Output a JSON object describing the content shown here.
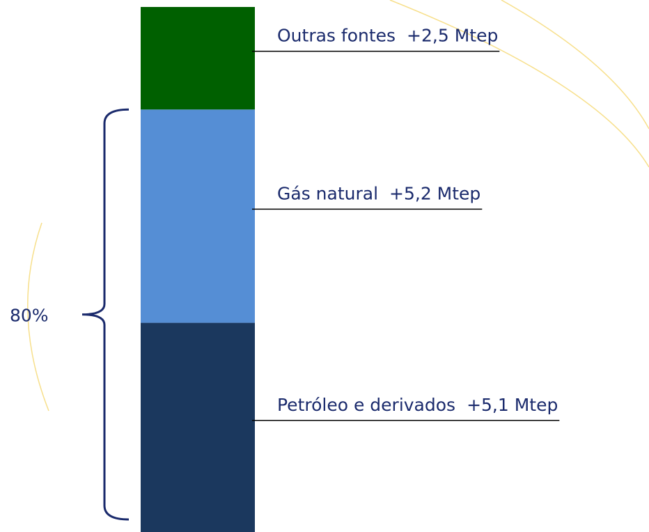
{
  "chart_data": {
    "type": "bar",
    "stacked": true,
    "categories": [
      null
    ],
    "series": [
      {
        "name": "Petróleo e derivados",
        "color": "#1b385e",
        "values": [
          5.1
        ],
        "value_labels": [
          "+5,1 Mtep"
        ]
      },
      {
        "name": "Gás natural",
        "color": "#558ed5",
        "values": [
          5.2
        ],
        "value_labels": [
          "+5,2 Mtep"
        ]
      },
      {
        "name": "Outras fontes",
        "color": "#006000",
        "values": [
          2.5
        ],
        "value_labels": [
          "+2,5 Mtep"
        ]
      }
    ],
    "annotation": "80%"
  }
}
